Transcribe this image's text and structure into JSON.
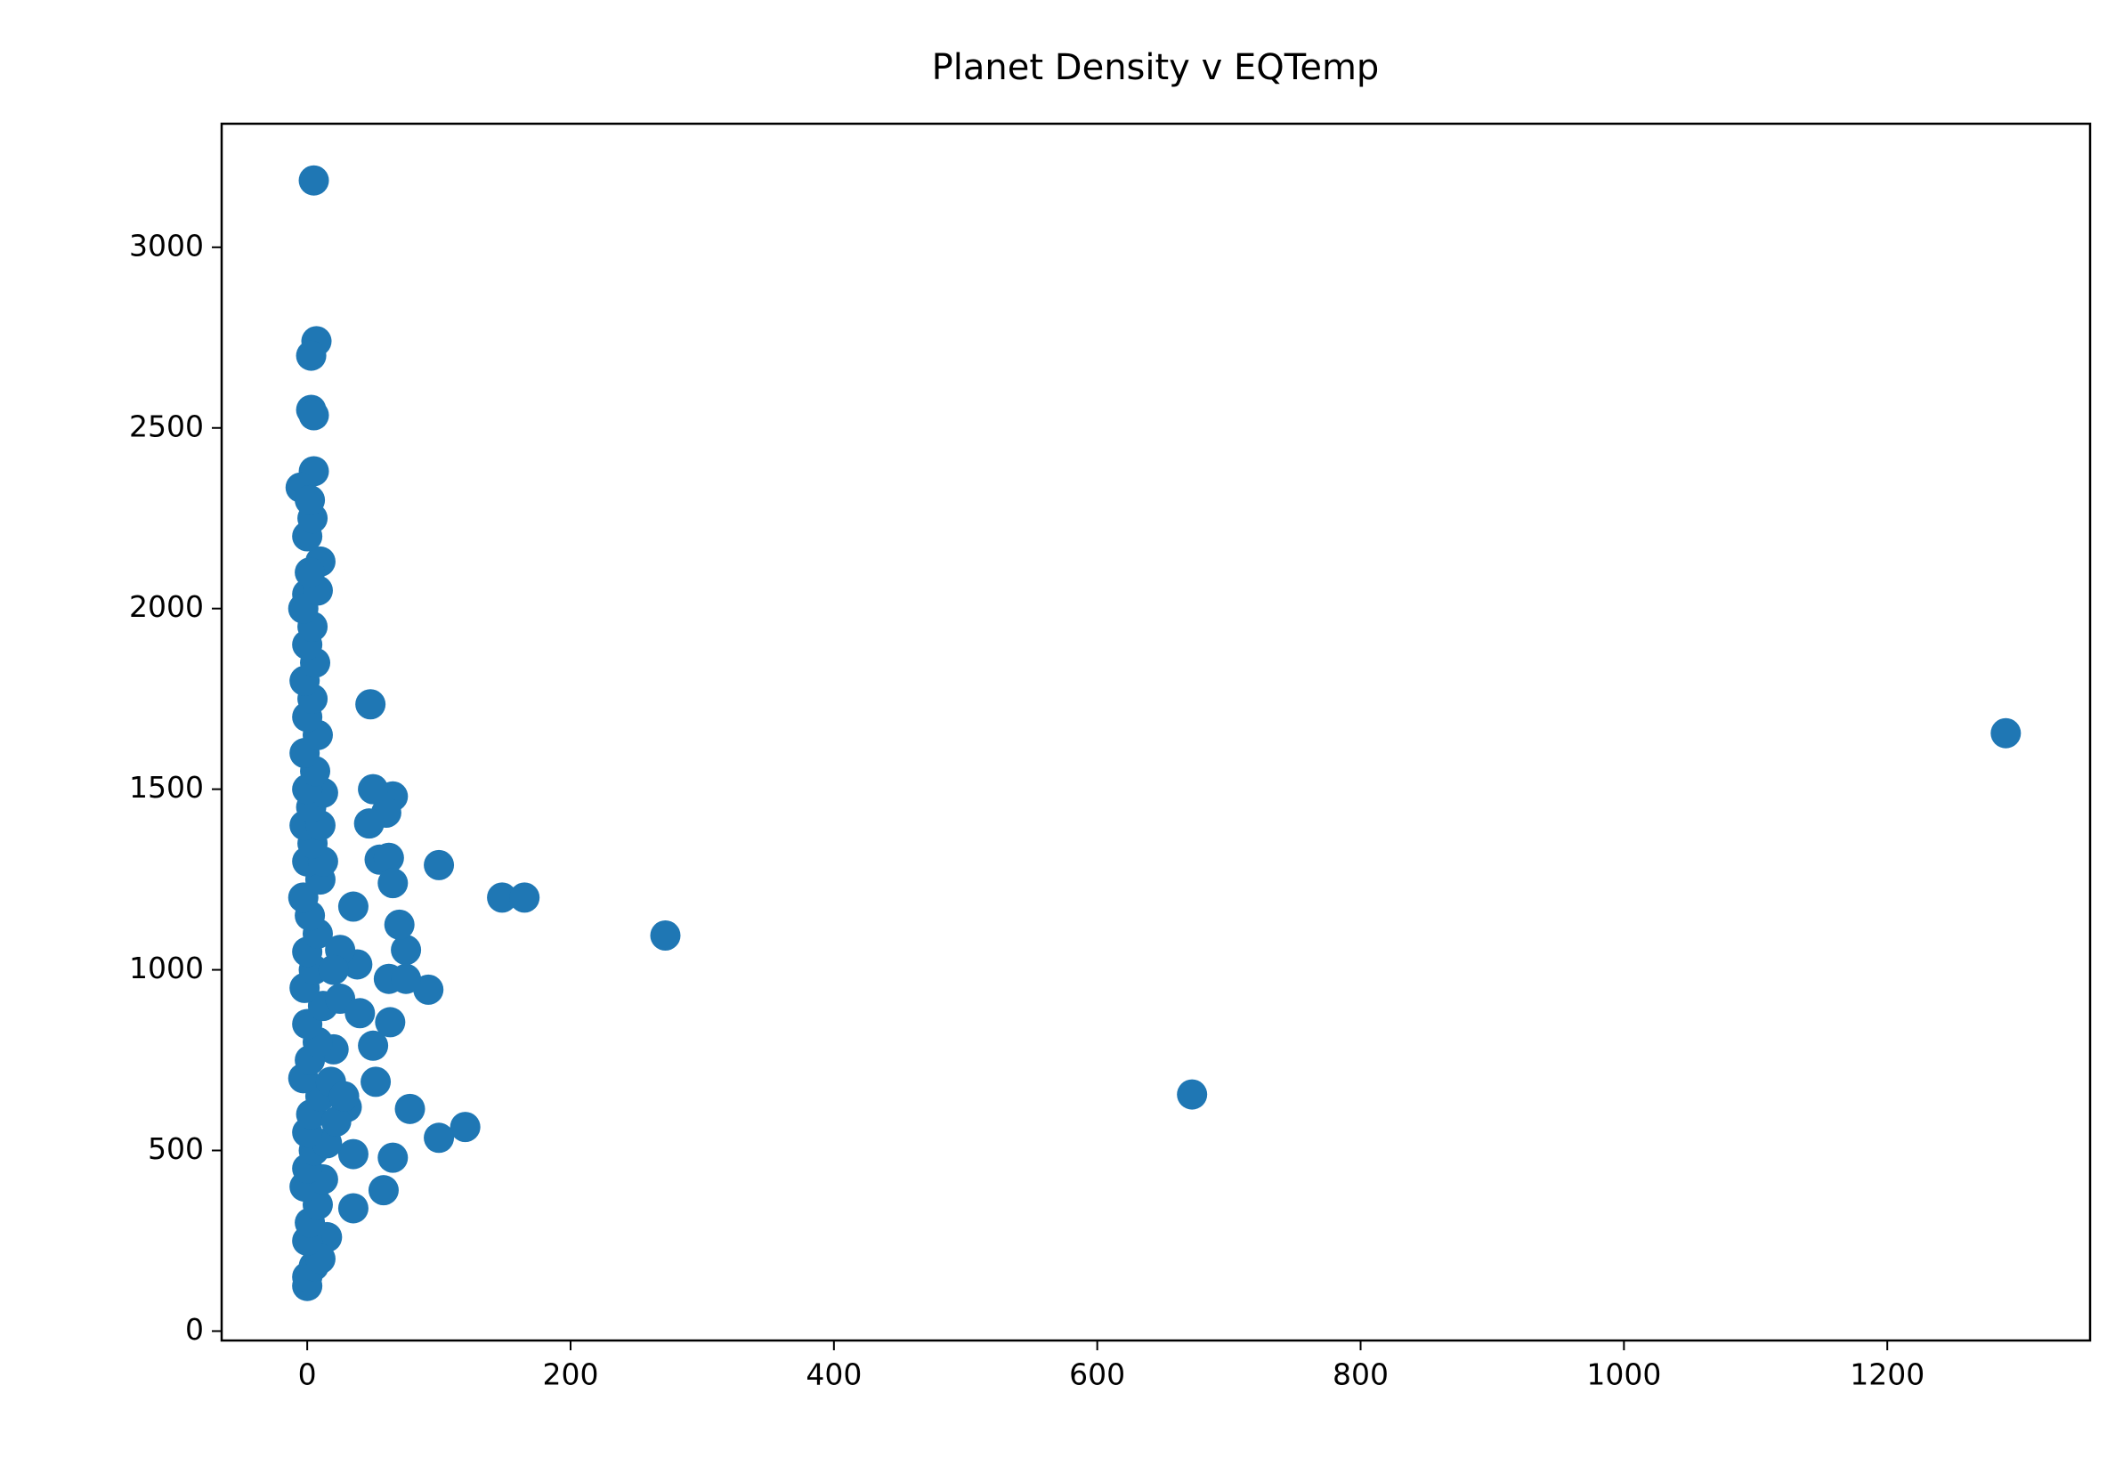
{
  "chart_data": {
    "type": "scatter",
    "title": "Planet Density v EQTemp",
    "color": "#1f77b4",
    "x": [
      1290,
      672,
      272,
      148,
      165,
      100,
      120,
      100,
      92,
      78,
      75,
      70,
      65,
      58,
      65,
      60,
      50,
      48,
      47,
      55,
      62,
      65,
      62,
      75,
      63,
      52,
      50,
      35,
      35,
      35,
      38,
      25,
      30,
      20,
      15,
      5,
      7,
      3,
      3,
      5,
      5,
      -5,
      0,
      0,
      0,
      5,
      10,
      0,
      2,
      8,
      -2,
      12,
      0,
      5,
      15,
      0,
      3,
      10,
      -3,
      18,
      2,
      8,
      0,
      12,
      -2,
      5,
      20,
      0,
      8,
      2,
      -3,
      10,
      0,
      12,
      4,
      -2,
      10,
      3,
      12,
      0,
      6,
      -2,
      8,
      0,
      4,
      -2,
      6,
      0,
      4,
      -3,
      8,
      10,
      2,
      0,
      4,
      2,
      25,
      40,
      22,
      28
    ],
    "values": [
      1655,
      655,
      1095,
      1200,
      1200,
      1290,
      565,
      535,
      945,
      615,
      1055,
      1125,
      480,
      390,
      1480,
      1435,
      1500,
      1735,
      1405,
      1305,
      1310,
      1240,
      975,
      975,
      855,
      690,
      790,
      490,
      340,
      1175,
      1015,
      1055,
      620,
      780,
      260,
      3185,
      2740,
      2700,
      2550,
      2535,
      2380,
      2335,
      2040,
      125,
      150,
      180,
      200,
      250,
      300,
      350,
      400,
      420,
      450,
      500,
      520,
      550,
      600,
      650,
      700,
      690,
      750,
      800,
      850,
      900,
      950,
      1000,
      1000,
      1050,
      1100,
      1150,
      1200,
      1250,
      1300,
      1300,
      1350,
      1400,
      1400,
      1450,
      1490,
      1500,
      1550,
      1600,
      1650,
      1700,
      1750,
      1800,
      1850,
      1900,
      1950,
      2000,
      2050,
      2130,
      2100,
      2200,
      2250,
      2300,
      920,
      880,
      580,
      650
    ],
    "xlim": [
      -65,
      1354
    ],
    "ylim": [
      -26,
      3342
    ],
    "xticks": [
      0,
      200,
      400,
      600,
      800,
      1000,
      1200
    ],
    "yticks": [
      0,
      500,
      1000,
      1500,
      2000,
      2500,
      3000
    ]
  }
}
